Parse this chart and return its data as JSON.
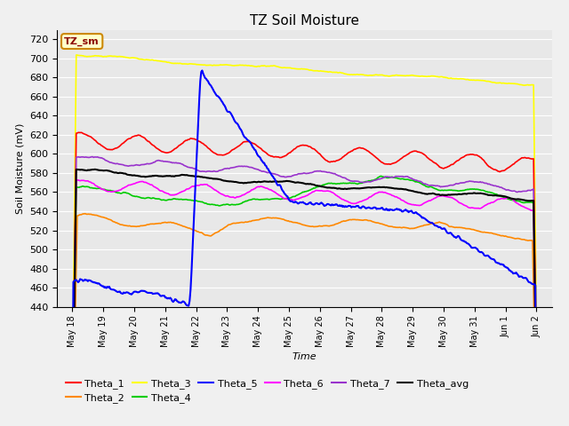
{
  "title": "TZ Soil Moisture",
  "ylabel": "Soil Moisture (mV)",
  "xlabel": "Time",
  "annotation": "TZ_sm",
  "ylim": [
    440,
    730
  ],
  "yticks": [
    440,
    460,
    480,
    500,
    520,
    540,
    560,
    580,
    600,
    620,
    640,
    660,
    680,
    700,
    720
  ],
  "bg_color": "#e8e8e8",
  "series_colors": {
    "Theta_1": "#ff0000",
    "Theta_2": "#ff8800",
    "Theta_3": "#ffff00",
    "Theta_4": "#00cc00",
    "Theta_5": "#0000ff",
    "Theta_6": "#ff00ff",
    "Theta_7": "#9933cc",
    "Theta_avg": "#000000"
  },
  "tick_labels": [
    "May 18",
    "May 19",
    "May 20",
    "May 21",
    "May 22",
    "May 23",
    "May 24",
    "May 25",
    "May 26",
    "May 27",
    "May 28",
    "May 29",
    "May 30",
    "May 31",
    "Jun 1",
    "Jun 2"
  ]
}
